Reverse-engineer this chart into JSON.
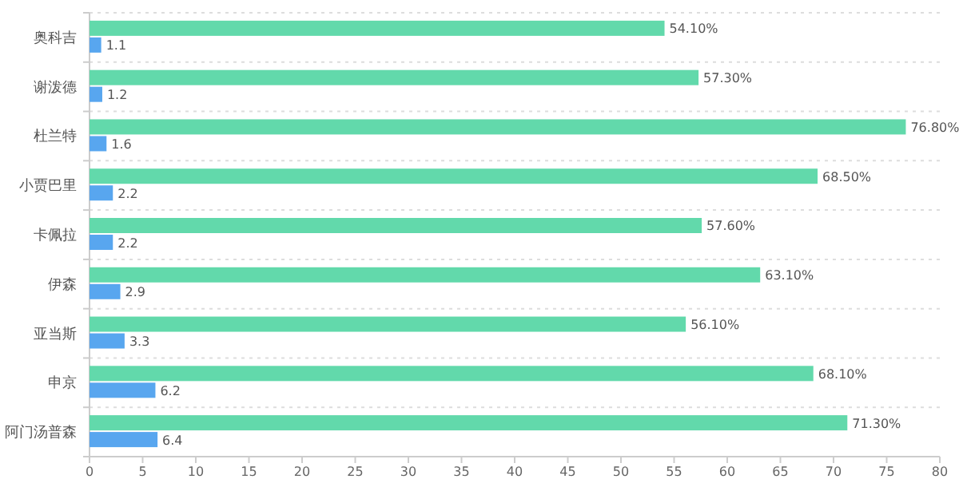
{
  "chart_data": {
    "type": "bar",
    "orientation": "horizontal",
    "categories": [
      "奥科吉",
      "谢泼德",
      "杜兰特",
      "小贾巴里",
      "卡佩拉",
      "伊森",
      "亚当斯",
      "申京",
      "阿门汤普森"
    ],
    "series": [
      {
        "color": "#62d9ab",
        "values": [
          54.1,
          57.3,
          76.8,
          68.5,
          57.6,
          63.1,
          56.1,
          68.1,
          71.3
        ],
        "value_labels": [
          "54.10%",
          "57.30%",
          "76.80%",
          "68.50%",
          "57.60%",
          "63.10%",
          "56.10%",
          "68.10%",
          "71.30%"
        ]
      },
      {
        "color": "#58a6ef",
        "values": [
          1.1,
          1.2,
          1.6,
          2.2,
          2.2,
          2.9,
          3.3,
          6.2,
          6.4
        ],
        "value_labels": [
          "1.1",
          "1.2",
          "1.6",
          "2.2",
          "2.2",
          "2.9",
          "3.3",
          "6.2",
          "6.4"
        ]
      }
    ],
    "xlim": [
      0,
      80
    ],
    "xticks": [
      0,
      5,
      10,
      15,
      20,
      25,
      30,
      35,
      40,
      45,
      50,
      55,
      60,
      65,
      70,
      75,
      80
    ],
    "grid": "y"
  }
}
